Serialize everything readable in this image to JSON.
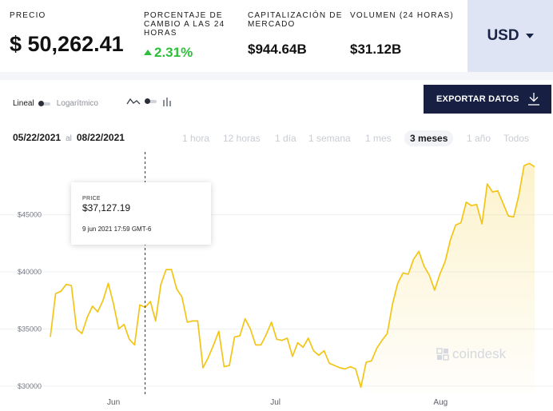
{
  "stats": {
    "price_label": "PRECIO",
    "price_value": "$ 50,262.41",
    "change_label": "PORCENTAJE DE CAMBIO A LAS 24 HORAS",
    "change_value": "2.31%",
    "market_cap_label": "CAPITALIZACIÓN DE MERCADO",
    "market_cap_value": "$944.64B",
    "volume_label": "VOLUMEN (24 HORAS)",
    "volume_value": "$31.12B",
    "currency": "USD"
  },
  "toolbar": {
    "scale_linear": "Lineal",
    "scale_log": "Logarítmico",
    "export_label": "EXPORTAR DATOS"
  },
  "date_range": {
    "from": "05/22/2021",
    "separator": "al",
    "to": "08/22/2021"
  },
  "ranges": [
    "1 hora",
    "12 horas",
    "1 día",
    "1 semana",
    "1 mes",
    "3 meses",
    "1 año",
    "Todos"
  ],
  "active_range": "3 meses",
  "tooltip": {
    "label": "PRICE",
    "value": "$37,127.19",
    "date": "9 jun 2021 17:59 GMT-6"
  },
  "watermark": "coindesk",
  "colors": {
    "line": "#f2c516",
    "positive": "#2cbf3a",
    "export_bg": "#172042",
    "currency_bg": "#dfe4f5"
  },
  "chart_data": {
    "type": "area",
    "yticks": [
      "$30000",
      "$35000",
      "$40000",
      "$45000"
    ],
    "xticks": [
      "Jun",
      "Jul",
      "Aug"
    ],
    "ylim": [
      29500,
      50500
    ],
    "x": [
      "2021-05-22",
      "2021-05-23",
      "2021-05-24",
      "2021-05-25",
      "2021-05-26",
      "2021-05-27",
      "2021-05-28",
      "2021-05-29",
      "2021-05-30",
      "2021-05-31",
      "2021-06-01",
      "2021-06-02",
      "2021-06-03",
      "2021-06-04",
      "2021-06-05",
      "2021-06-06",
      "2021-06-07",
      "2021-06-08",
      "2021-06-09",
      "2021-06-10",
      "2021-06-11",
      "2021-06-12",
      "2021-06-13",
      "2021-06-14",
      "2021-06-15",
      "2021-06-16",
      "2021-06-17",
      "2021-06-18",
      "2021-06-19",
      "2021-06-20",
      "2021-06-21",
      "2021-06-22",
      "2021-06-23",
      "2021-06-24",
      "2021-06-25",
      "2021-06-26",
      "2021-06-27",
      "2021-06-28",
      "2021-06-29",
      "2021-06-30",
      "2021-07-01",
      "2021-07-02",
      "2021-07-03",
      "2021-07-04",
      "2021-07-05",
      "2021-07-06",
      "2021-07-07",
      "2021-07-08",
      "2021-07-09",
      "2021-07-10",
      "2021-07-11",
      "2021-07-12",
      "2021-07-13",
      "2021-07-14",
      "2021-07-15",
      "2021-07-16",
      "2021-07-17",
      "2021-07-18",
      "2021-07-19",
      "2021-07-20",
      "2021-07-21",
      "2021-07-22",
      "2021-07-23",
      "2021-07-24",
      "2021-07-25",
      "2021-07-26",
      "2021-07-27",
      "2021-07-28",
      "2021-07-29",
      "2021-07-30",
      "2021-07-31",
      "2021-08-01",
      "2021-08-02",
      "2021-08-03",
      "2021-08-04",
      "2021-08-05",
      "2021-08-06",
      "2021-08-07",
      "2021-08-08",
      "2021-08-09",
      "2021-08-10",
      "2021-08-11",
      "2021-08-12",
      "2021-08-13",
      "2021-08-14",
      "2021-08-15",
      "2021-08-16",
      "2021-08-17",
      "2021-08-18",
      "2021-08-19",
      "2021-08-20",
      "2021-08-21",
      "2021-08-22"
    ],
    "series": [
      {
        "values": [
          34300,
          38100,
          38300,
          38900,
          38800,
          35000,
          34600,
          36000,
          37000,
          36500,
          37500,
          39000,
          37200,
          35000,
          35400,
          34100,
          33600,
          37100,
          36900,
          37400,
          35700,
          38900,
          40200,
          40200,
          38500,
          37800,
          35600,
          35700,
          35700,
          31600,
          32500,
          33600,
          34800,
          31700,
          31800,
          34300,
          34400,
          35900,
          35000,
          33600,
          33600,
          34500,
          35600,
          34100,
          34000,
          34200,
          32600,
          33800,
          33400,
          34200,
          33100,
          32700,
          33100,
          32000,
          31800,
          31600,
          31500,
          31700,
          31500,
          29900,
          32100,
          32200,
          33300,
          34000,
          34600,
          37200,
          39000,
          39900,
          39800,
          41100,
          41800,
          40500,
          39700,
          38400,
          39800,
          40900,
          42800,
          44100,
          44300,
          46100,
          45800,
          45900,
          44200,
          47700,
          47000,
          47100,
          46000,
          44900,
          44800,
          46700,
          49300,
          49500,
          49200
        ]
      }
    ]
  }
}
